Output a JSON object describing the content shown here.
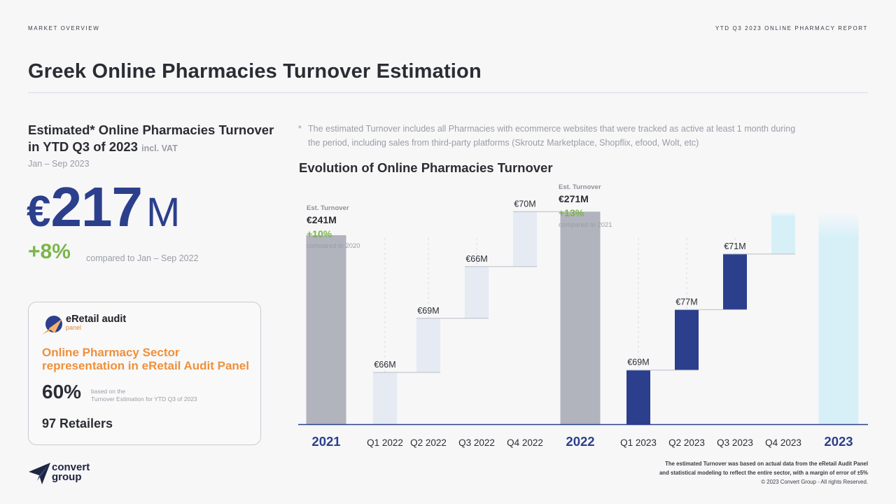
{
  "header": {
    "section": "MARKET OVERVIEW",
    "report": "YTD Q3 2023 ONLINE PHARMACY REPORT"
  },
  "page_title": "Greek Online Pharmacies Turnover Estimation",
  "kpi": {
    "heading": "Estimated* Online Pharmacies Turnover in YTD Q3 of 2023",
    "vat": "incl. VAT",
    "period": "Jan – Sep 2023",
    "currency": "€",
    "value": "217",
    "unit": "M",
    "growth": "+8%",
    "growth_compare": "compared to Jan – Sep 2022"
  },
  "panel_card": {
    "logo_name": "eRetail audit",
    "logo_sub": "panel",
    "title": "Online Pharmacy Sector representation in eRetail Audit Panel",
    "percentage": "60%",
    "note_line1": "based on the",
    "note_line2": "Turnover Estimation for YTD Q3 of 2023",
    "retailers": "97 Retailers"
  },
  "footnote": {
    "star": "*",
    "text": "The estimated Turnover includes all Pharmacies with ecommerce websites that were tracked as active at least 1 month during the period, including sales from third-party platforms (Skroutz Marketplace, Shopflix, efood, Wolt, etc)"
  },
  "chart_data": {
    "type": "bar",
    "subtype": "waterfall",
    "title": "Evolution of Online Pharmacies Turnover",
    "unit": "€M",
    "categories": [
      "2021",
      "Q1 2022",
      "Q2 2022",
      "Q3 2022",
      "Q4 2022",
      "2022",
      "Q1 2023",
      "Q2 2023",
      "Q3 2023",
      "Q4 2023",
      "2023"
    ],
    "bars": [
      {
        "label": "2021",
        "kind": "total",
        "value": 241,
        "base": 0,
        "color": "#b1b3bd"
      },
      {
        "label": "Q1 2022",
        "kind": "step",
        "value": 66,
        "base": 0,
        "color": "#e5eaf3",
        "data_label": "€66M"
      },
      {
        "label": "Q2 2022",
        "kind": "step",
        "value": 69,
        "base": 66,
        "color": "#e5eaf3",
        "data_label": "€69M"
      },
      {
        "label": "Q3 2022",
        "kind": "step",
        "value": 66,
        "base": 135,
        "color": "#e5eaf3",
        "data_label": "€66M"
      },
      {
        "label": "Q4 2022",
        "kind": "step",
        "value": 70,
        "base": 201,
        "color": "#e5eaf3",
        "data_label": "€70M"
      },
      {
        "label": "2022",
        "kind": "total",
        "value": 271,
        "base": 0,
        "color": "#b1b3bd"
      },
      {
        "label": "Q1 2023",
        "kind": "step",
        "value": 69,
        "base": 0,
        "color": "#2b3f8c",
        "data_label": "€69M"
      },
      {
        "label": "Q2 2023",
        "kind": "step",
        "value": 77,
        "base": 69,
        "color": "#2b3f8c",
        "data_label": "€77M"
      },
      {
        "label": "Q3 2023",
        "kind": "step",
        "value": 71,
        "base": 146,
        "color": "#2b3f8c",
        "data_label": "€71M"
      },
      {
        "label": "Q4 2023",
        "kind": "forecast",
        "value": 54,
        "base": 217,
        "color": "#d7f0f8"
      },
      {
        "label": "2023",
        "kind": "forecast-total",
        "value": 271,
        "base": 0,
        "color": "#d7f0f8"
      }
    ],
    "totals_annotations": [
      {
        "label": "2021",
        "caption": "Est. Turnover",
        "value": "€241M",
        "growth": "+10%",
        "compare": "compared to 2020"
      },
      {
        "label": "2022",
        "caption": "Est. Turnover",
        "value": "€271M",
        "growth": "+13%",
        "compare": "compared to 2021"
      }
    ],
    "ylim": [
      0,
      300
    ]
  },
  "chart_footer": {
    "line1": "The estimated Turnover was based on actual data from the eRetail Audit Panel",
    "line2": "and statistical modeling to reflect the entire sector, with a margin of error of ±5%",
    "copyright": "© 2023 Convert Group - All rights Reserved."
  },
  "brand": {
    "line1": "convert",
    "line2": "group"
  },
  "colors": {
    "accent_blue": "#2b3f8c",
    "green": "#7ab648",
    "orange": "#f0903a",
    "grey_bar": "#b1b3bd"
  }
}
